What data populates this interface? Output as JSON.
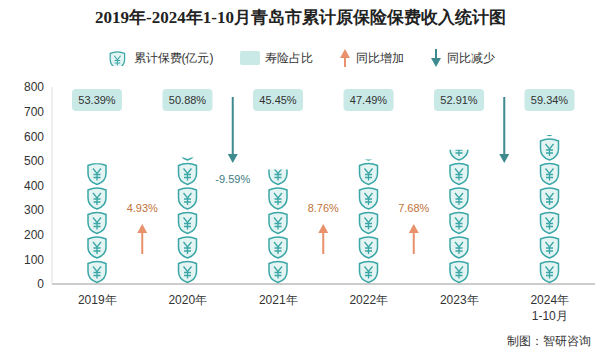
{
  "chart_data": {
    "type": "bar",
    "title": "2019年-2024年1-10月青岛市累计原保险保费收入统计图",
    "categories": [
      "2019年",
      "2020年",
      "2021年",
      "2022年",
      "2023年",
      "2024年\n1-10月"
    ],
    "series": [
      {
        "name": "累计保费(亿元)",
        "color": "#3aa6a6",
        "marker": "shield",
        "values": [
          490,
          514,
          465,
          506,
          545,
          605
        ]
      }
    ],
    "life_share": {
      "name": "寿险占比",
      "color": "#c8e9e6",
      "values": [
        53.39,
        50.88,
        45.45,
        47.49,
        52.91,
        59.34
      ],
      "value_labels": [
        "53.39%",
        "50.88%",
        "45.45%",
        "47.49%",
        "52.91%",
        "59.34%"
      ]
    },
    "yoy": {
      "increase_name": "同比增加",
      "decrease_name": "同比减少",
      "increase_color": "#e8916a",
      "decrease_color": "#3e8a8f",
      "values": [
        4.93,
        -9.59,
        8.76,
        7.68
      ],
      "value_labels": [
        "4.93%",
        "-9.59%",
        "8.76%",
        "7.68%"
      ]
    },
    "ylim": [
      0,
      800
    ],
    "yticks": [
      0,
      100,
      200,
      300,
      400,
      500,
      600,
      700,
      800
    ],
    "grid": false,
    "source": "制图：智研咨询"
  }
}
